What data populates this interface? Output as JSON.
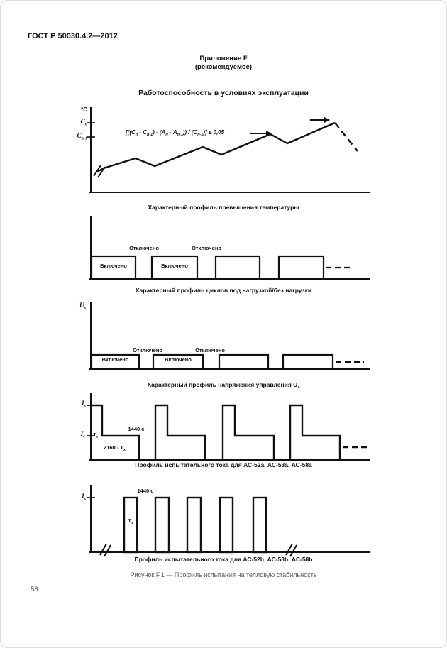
{
  "page": {
    "doc_number": "ГОСТ Р 50030.4.2—2012",
    "appendix": "Приложение F",
    "appendix_note": "(рекомендуемое)",
    "title": "Работоспособность в условиях эксплуатации",
    "figure_caption": "Рисунок F.1 — Профиль испытания на тепловую стабильность",
    "page_number": "58"
  },
  "charts": {
    "temperature": {
      "caption": "Характерный профиль превышения температуры",
      "y_axis_unit": "°C",
      "y_label_high": "С{п}",
      "y_label_low": "С{п-1}",
      "formula": "[((С{п} - С{п-1}) - (А{п} - А{п-1})) / (С{п-1})] ≤ 0,05"
    },
    "load_cycles": {
      "caption": "Характерный профиль циклов под нагрузкой/без нагрузки",
      "on_label": "Включено",
      "off_label": "Отключено"
    },
    "control_voltage": {
      "caption": "Характерный профиль напряжения управления U{s}",
      "y_label": "U{s}",
      "on_label": "Включено",
      "off_label": "Отключено"
    },
    "test_current_a": {
      "caption": "Профиль испытательного тока для АС-52а, АС-53а, АС-58а",
      "y_label_high": "I{s}",
      "y_label_low": "I{e}",
      "duration_label": "1440 с",
      "start_time_label": "Т{х}",
      "off_time_label": "2160 - Т{х}"
    },
    "test_current_b": {
      "caption": "Профиль испытательного тока для АС-52b, АС-53b, АС-58b",
      "y_label": "I{s}",
      "duration_label": "1440 с",
      "start_time_label": "Т{х}"
    }
  }
}
